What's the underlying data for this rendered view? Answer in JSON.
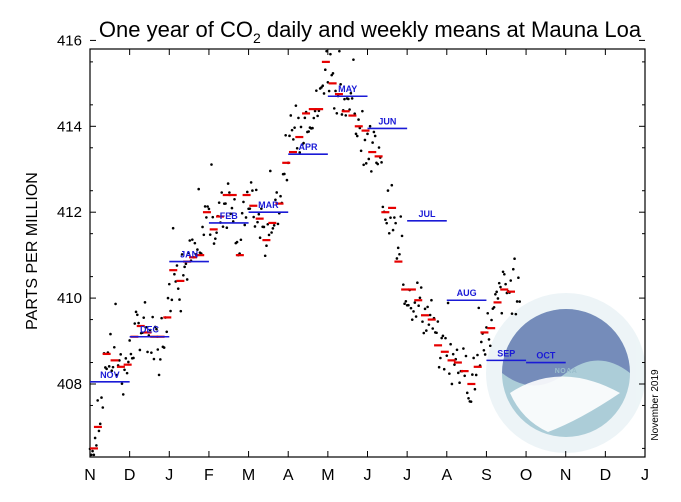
{
  "chart_data": {
    "type": "scatter",
    "title": "One year of CO",
    "title_sub": "2",
    "title_rest": " daily and weekly means at Mauna Loa",
    "ylabel": "PARTS PER MILLION",
    "ylim": [
      406.3,
      415.8
    ],
    "yticks": [
      408,
      410,
      412,
      414,
      416
    ],
    "xticks": [
      "N",
      "D",
      "J",
      "F",
      "M",
      "A",
      "M",
      "J",
      "J",
      "A",
      "S",
      "O",
      "N",
      "D",
      "J"
    ],
    "credit": "November 2019",
    "colors": {
      "daily": "#000000",
      "weekly": "#e60000",
      "monthly": "#1a1ad6",
      "logo": "#8ab3c4"
    },
    "monthly_means": [
      {
        "label": "NOV",
        "start": 0.0,
        "end": 1.0,
        "value": 408.05
      },
      {
        "label": "DEC",
        "start": 1.0,
        "end": 2.0,
        "value": 409.1
      },
      {
        "label": "JAN",
        "start": 2.0,
        "end": 3.0,
        "value": 410.85
      },
      {
        "label": "FEB",
        "start": 3.0,
        "end": 4.0,
        "value": 411.75
      },
      {
        "label": "MAR",
        "start": 4.0,
        "end": 5.0,
        "value": 412.0
      },
      {
        "label": "APR",
        "start": 5.0,
        "end": 6.0,
        "value": 413.35
      },
      {
        "label": "MAY",
        "start": 6.0,
        "end": 7.0,
        "value": 414.7
      },
      {
        "label": "JUN",
        "start": 7.0,
        "end": 8.0,
        "value": 413.95
      },
      {
        "label": "JUL",
        "start": 8.0,
        "end": 9.0,
        "value": 411.8
      },
      {
        "label": "AUG",
        "start": 9.0,
        "end": 10.0,
        "value": 409.95
      },
      {
        "label": "SEP",
        "start": 10.0,
        "end": 11.0,
        "value": 408.55
      },
      {
        "label": "OCT",
        "start": 11.0,
        "end": 12.0,
        "value": 408.5
      }
    ],
    "weekly_means": [
      [
        0.1,
        406.5
      ],
      [
        0.2,
        407.0
      ],
      [
        0.42,
        408.7
      ],
      [
        0.62,
        408.55
      ],
      [
        0.78,
        408.4
      ],
      [
        0.95,
        408.45
      ],
      [
        1.12,
        409.1
      ],
      [
        1.28,
        409.35
      ],
      [
        1.45,
        409.2
      ],
      [
        1.62,
        409.1
      ],
      [
        1.78,
        409.1
      ],
      [
        1.95,
        409.55
      ],
      [
        2.1,
        410.65
      ],
      [
        2.28,
        410.4
      ],
      [
        2.45,
        410.85
      ],
      [
        2.6,
        410.95
      ],
      [
        2.78,
        411.0
      ],
      [
        2.95,
        412.0
      ],
      [
        3.12,
        411.6
      ],
      [
        3.28,
        411.9
      ],
      [
        3.45,
        412.4
      ],
      [
        3.6,
        412.4
      ],
      [
        3.78,
        411.0
      ],
      [
        3.95,
        412.4
      ],
      [
        4.12,
        412.15
      ],
      [
        4.28,
        411.85
      ],
      [
        4.45,
        411.35
      ],
      [
        4.6,
        411.75
      ],
      [
        4.78,
        412.2
      ],
      [
        4.95,
        413.15
      ],
      [
        5.12,
        413.4
      ],
      [
        5.28,
        413.75
      ],
      [
        5.45,
        414.3
      ],
      [
        5.62,
        414.4
      ],
      [
        5.78,
        414.4
      ],
      [
        5.95,
        415.5
      ],
      [
        6.12,
        415.0
      ],
      [
        6.28,
        414.75
      ],
      [
        6.45,
        414.35
      ],
      [
        6.62,
        414.25
      ],
      [
        6.78,
        414.0
      ],
      [
        6.95,
        413.9
      ],
      [
        7.12,
        413.4
      ],
      [
        7.28,
        413.3
      ],
      [
        7.45,
        412.0
      ],
      [
        7.62,
        412.1
      ],
      [
        7.78,
        410.85
      ],
      [
        7.95,
        410.2
      ],
      [
        8.12,
        410.2
      ],
      [
        8.28,
        409.95
      ],
      [
        8.45,
        409.6
      ],
      [
        8.62,
        409.5
      ],
      [
        8.78,
        408.9
      ],
      [
        8.95,
        408.75
      ],
      [
        9.12,
        408.55
      ],
      [
        9.28,
        408.5
      ],
      [
        9.45,
        408.3
      ],
      [
        9.62,
        408.0
      ],
      [
        9.78,
        408.4
      ],
      [
        9.95,
        409.2
      ],
      [
        10.12,
        409.3
      ],
      [
        10.28,
        409.9
      ],
      [
        10.45,
        410.2
      ],
      [
        10.62,
        410.15
      ]
    ],
    "daily_jitter_seed": 7
  }
}
